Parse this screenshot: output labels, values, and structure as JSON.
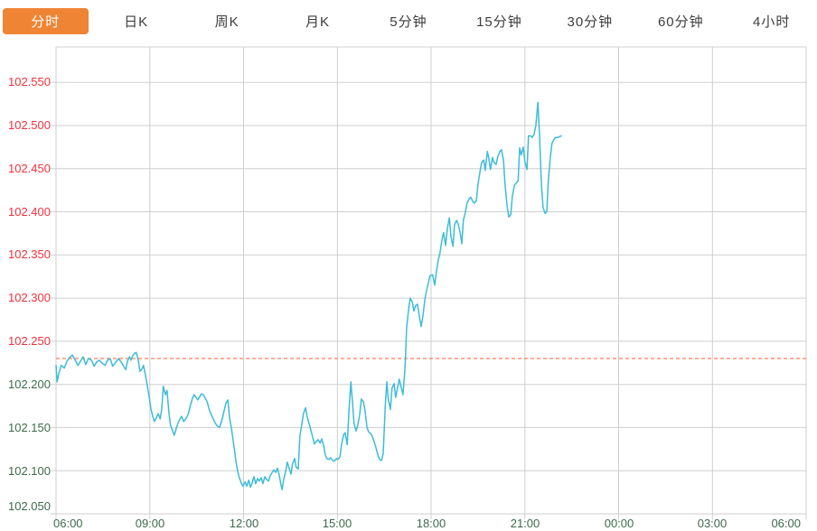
{
  "tabs": [
    {
      "label": "分时",
      "active": true
    },
    {
      "label": "日K"
    },
    {
      "label": "周K"
    },
    {
      "label": "月K"
    },
    {
      "label": "5分钟"
    },
    {
      "label": "15分钟"
    },
    {
      "label": "30分钟"
    },
    {
      "label": "60分钟"
    },
    {
      "label": "4小时"
    }
  ],
  "colors": {
    "accent_orange": "#ef8435",
    "line_cyan": "#3dbcd8",
    "reference_orange_red": "#ff5e2b",
    "grid_gray": "#cfcfcf",
    "label_red": "#f2303d",
    "label_green": "#3d6a4b",
    "tab_text": "#3c3c3c"
  },
  "chart_data": {
    "type": "line",
    "title": "",
    "xlabel": "",
    "ylabel": "",
    "grid": true,
    "legend": "none",
    "x_axis": {
      "range_minutes": [
        0,
        1440
      ],
      "interval_minutes": 180,
      "ticks": [
        {
          "label": "06:00"
        },
        {
          "label": "09:00"
        },
        {
          "label": "12:00"
        },
        {
          "label": "15:00"
        },
        {
          "label": "18:00"
        },
        {
          "label": "21:00"
        },
        {
          "label": "00:00"
        },
        {
          "label": "03:00"
        },
        {
          "label": "06:00"
        }
      ]
    },
    "y_axis": {
      "min": 102.05,
      "max": 102.55,
      "step": 0.05,
      "ticks": [
        {
          "label": "102.550",
          "color": "red"
        },
        {
          "label": "102.500",
          "color": "red"
        },
        {
          "label": "102.450",
          "color": "red"
        },
        {
          "label": "102.400",
          "color": "red"
        },
        {
          "label": "102.350",
          "color": "red"
        },
        {
          "label": "102.300",
          "color": "red"
        },
        {
          "label": "102.250",
          "color": "red"
        },
        {
          "label": "102.200",
          "color": "green"
        },
        {
          "label": "102.150",
          "color": "green"
        },
        {
          "label": "102.100",
          "color": "green"
        },
        {
          "label": "102.050",
          "color": "green"
        }
      ]
    },
    "reference_price": 102.23,
    "reference_style": "dashed",
    "series": [
      {
        "name": "price",
        "color": "#3dbcd8",
        "points": [
          [
            0,
            102.222
          ],
          [
            2,
            102.203
          ],
          [
            5,
            102.212
          ],
          [
            10,
            102.222
          ],
          [
            16,
            102.219
          ],
          [
            21,
            102.227
          ],
          [
            26,
            102.231
          ],
          [
            31,
            102.234
          ],
          [
            36,
            102.229
          ],
          [
            42,
            102.222
          ],
          [
            47,
            102.227
          ],
          [
            52,
            102.232
          ],
          [
            57,
            102.223
          ],
          [
            62,
            102.23
          ],
          [
            68,
            102.228
          ],
          [
            73,
            102.221
          ],
          [
            78,
            102.226
          ],
          [
            83,
            102.228
          ],
          [
            88,
            102.225
          ],
          [
            94,
            102.222
          ],
          [
            99,
            102.228
          ],
          [
            104,
            102.23
          ],
          [
            109,
            102.221
          ],
          [
            115,
            102.226
          ],
          [
            120,
            102.23
          ],
          [
            125,
            102.226
          ],
          [
            130,
            102.221
          ],
          [
            134,
            102.217
          ],
          [
            137,
            102.227
          ],
          [
            141,
            102.232
          ],
          [
            144,
            102.228
          ],
          [
            147,
            102.233
          ],
          [
            151,
            102.236
          ],
          [
            154,
            102.237
          ],
          [
            158,
            102.228
          ],
          [
            161,
            102.215
          ],
          [
            165,
            102.218
          ],
          [
            168,
            102.222
          ],
          [
            172,
            102.21
          ],
          [
            175,
            102.199
          ],
          [
            179,
            102.185
          ],
          [
            182,
            102.172
          ],
          [
            186,
            102.162
          ],
          [
            189,
            102.157
          ],
          [
            193,
            102.162
          ],
          [
            196,
            102.166
          ],
          [
            200,
            102.16
          ],
          [
            203,
            102.172
          ],
          [
            206,
            102.198
          ],
          [
            210,
            102.188
          ],
          [
            213,
            102.193
          ],
          [
            217,
            102.165
          ],
          [
            220,
            102.152
          ],
          [
            224,
            102.146
          ],
          [
            227,
            102.141
          ],
          [
            231,
            102.149
          ],
          [
            234,
            102.155
          ],
          [
            238,
            102.16
          ],
          [
            241,
            102.163
          ],
          [
            245,
            102.157
          ],
          [
            248,
            102.159
          ],
          [
            252,
            102.163
          ],
          [
            255,
            102.168
          ],
          [
            258,
            102.176
          ],
          [
            262,
            102.184
          ],
          [
            265,
            102.188
          ],
          [
            269,
            102.185
          ],
          [
            272,
            102.182
          ],
          [
            276,
            102.186
          ],
          [
            279,
            102.189
          ],
          [
            283,
            102.188
          ],
          [
            290,
            102.18
          ],
          [
            295,
            102.169
          ],
          [
            304,
            102.157
          ],
          [
            309,
            102.152
          ],
          [
            314,
            102.15
          ],
          [
            319,
            102.16
          ],
          [
            326,
            102.178
          ],
          [
            330,
            102.182
          ],
          [
            333,
            102.162
          ],
          [
            337,
            102.148
          ],
          [
            340,
            102.135
          ],
          [
            343,
            102.122
          ],
          [
            345,
            102.112
          ],
          [
            349,
            102.098
          ],
          [
            352,
            102.092
          ],
          [
            356,
            102.085
          ],
          [
            359,
            102.082
          ],
          [
            363,
            102.087
          ],
          [
            366,
            102.082
          ],
          [
            370,
            102.089
          ],
          [
            373,
            102.081
          ],
          [
            376,
            102.085
          ],
          [
            380,
            102.093
          ],
          [
            383,
            102.085
          ],
          [
            387,
            102.091
          ],
          [
            390,
            102.088
          ],
          [
            394,
            102.092
          ],
          [
            397,
            102.085
          ],
          [
            401,
            102.093
          ],
          [
            404,
            102.09
          ],
          [
            408,
            102.088
          ],
          [
            411,
            102.094
          ],
          [
            415,
            102.098
          ],
          [
            418,
            102.101
          ],
          [
            422,
            102.098
          ],
          [
            425,
            102.103
          ],
          [
            428,
            102.096
          ],
          [
            432,
            102.083
          ],
          [
            434,
            102.078
          ],
          [
            437,
            102.09
          ],
          [
            441,
            102.1
          ],
          [
            444,
            102.11
          ],
          [
            448,
            102.102
          ],
          [
            451,
            102.096
          ],
          [
            454,
            102.108
          ],
          [
            458,
            102.114
          ],
          [
            461,
            102.104
          ],
          [
            465,
            102.102
          ],
          [
            468,
            102.14
          ],
          [
            472,
            102.155
          ],
          [
            475,
            102.166
          ],
          [
            479,
            102.173
          ],
          [
            482,
            102.163
          ],
          [
            487,
            102.152
          ],
          [
            493,
            102.138
          ],
          [
            496,
            102.131
          ],
          [
            500,
            102.134
          ],
          [
            503,
            102.136
          ],
          [
            507,
            102.132
          ],
          [
            510,
            102.137
          ],
          [
            514,
            102.128
          ],
          [
            517,
            102.118
          ],
          [
            520,
            102.114
          ],
          [
            524,
            102.113
          ],
          [
            527,
            102.115
          ],
          [
            531,
            102.112
          ],
          [
            534,
            102.111
          ],
          [
            538,
            102.114
          ],
          [
            541,
            102.113
          ],
          [
            545,
            102.116
          ],
          [
            548,
            102.13
          ],
          [
            552,
            102.142
          ],
          [
            555,
            102.144
          ],
          [
            559,
            102.13
          ],
          [
            562,
            102.165
          ],
          [
            566,
            102.203
          ],
          [
            569,
            102.18
          ],
          [
            572,
            102.155
          ],
          [
            576,
            102.146
          ],
          [
            579,
            102.152
          ],
          [
            583,
            102.165
          ],
          [
            586,
            102.183
          ],
          [
            590,
            102.18
          ],
          [
            593,
            102.17
          ],
          [
            597,
            102.15
          ],
          [
            600,
            102.145
          ],
          [
            604,
            102.143
          ],
          [
            607,
            102.14
          ],
          [
            611,
            102.133
          ],
          [
            614,
            102.127
          ],
          [
            618,
            102.118
          ],
          [
            621,
            102.113
          ],
          [
            625,
            102.112
          ],
          [
            628,
            102.12
          ],
          [
            632,
            102.175
          ],
          [
            635,
            102.203
          ],
          [
            638,
            102.182
          ],
          [
            642,
            102.171
          ],
          [
            645,
            102.196
          ],
          [
            649,
            102.201
          ],
          [
            652,
            102.185
          ],
          [
            656,
            102.197
          ],
          [
            659,
            102.206
          ],
          [
            663,
            102.196
          ],
          [
            666,
            102.188
          ],
          [
            670,
            102.22
          ],
          [
            673,
            102.265
          ],
          [
            677,
            102.288
          ],
          [
            680,
            102.3
          ],
          [
            684,
            102.295
          ],
          [
            687,
            102.285
          ],
          [
            690,
            102.291
          ],
          [
            694,
            102.293
          ],
          [
            697,
            102.281
          ],
          [
            701,
            102.267
          ],
          [
            704,
            102.278
          ],
          [
            708,
            102.298
          ],
          [
            711,
            102.308
          ],
          [
            715,
            102.318
          ],
          [
            718,
            102.326
          ],
          [
            723,
            102.327
          ],
          [
            727,
            102.315
          ],
          [
            730,
            102.33
          ],
          [
            734,
            102.345
          ],
          [
            737,
            102.352
          ],
          [
            741,
            102.368
          ],
          [
            744,
            102.376
          ],
          [
            748,
            102.361
          ],
          [
            751,
            102.38
          ],
          [
            755,
            102.393
          ],
          [
            758,
            102.372
          ],
          [
            762,
            102.36
          ],
          [
            765,
            102.385
          ],
          [
            769,
            102.39
          ],
          [
            772,
            102.386
          ],
          [
            776,
            102.375
          ],
          [
            779,
            102.363
          ],
          [
            782,
            102.39
          ],
          [
            786,
            102.4
          ],
          [
            789,
            102.41
          ],
          [
            793,
            102.415
          ],
          [
            796,
            102.417
          ],
          [
            800,
            102.412
          ],
          [
            803,
            102.41
          ],
          [
            807,
            102.413
          ],
          [
            810,
            102.432
          ],
          [
            814,
            102.447
          ],
          [
            817,
            102.457
          ],
          [
            821,
            102.46
          ],
          [
            824,
            102.448
          ],
          [
            828,
            102.47
          ],
          [
            831,
            102.461
          ],
          [
            834,
            102.449
          ],
          [
            838,
            102.463
          ],
          [
            841,
            102.457
          ],
          [
            845,
            102.455
          ],
          [
            848,
            102.464
          ],
          [
            852,
            102.47
          ],
          [
            855,
            102.472
          ],
          [
            859,
            102.46
          ],
          [
            862,
            102.432
          ],
          [
            866,
            102.406
          ],
          [
            869,
            102.394
          ],
          [
            873,
            102.397
          ],
          [
            876,
            102.418
          ],
          [
            880,
            102.431
          ],
          [
            883,
            102.433
          ],
          [
            887,
            102.436
          ],
          [
            890,
            102.474
          ],
          [
            893,
            102.466
          ],
          [
            897,
            102.475
          ],
          [
            900,
            102.458
          ],
          [
            904,
            102.449
          ],
          [
            907,
            102.488
          ],
          [
            911,
            102.488
          ],
          [
            914,
            102.486
          ],
          [
            918,
            102.49
          ],
          [
            921,
            102.5
          ],
          [
            925,
            102.527
          ],
          [
            928,
            102.49
          ],
          [
            932,
            102.43
          ],
          [
            935,
            102.405
          ],
          [
            939,
            102.398
          ],
          [
            942,
            102.4
          ],
          [
            945,
            102.436
          ],
          [
            949,
            102.464
          ],
          [
            952,
            102.479
          ],
          [
            956,
            102.484
          ],
          [
            959,
            102.486
          ],
          [
            963,
            102.486
          ],
          [
            966,
            102.487
          ],
          [
            970,
            102.488
          ]
        ]
      }
    ]
  }
}
